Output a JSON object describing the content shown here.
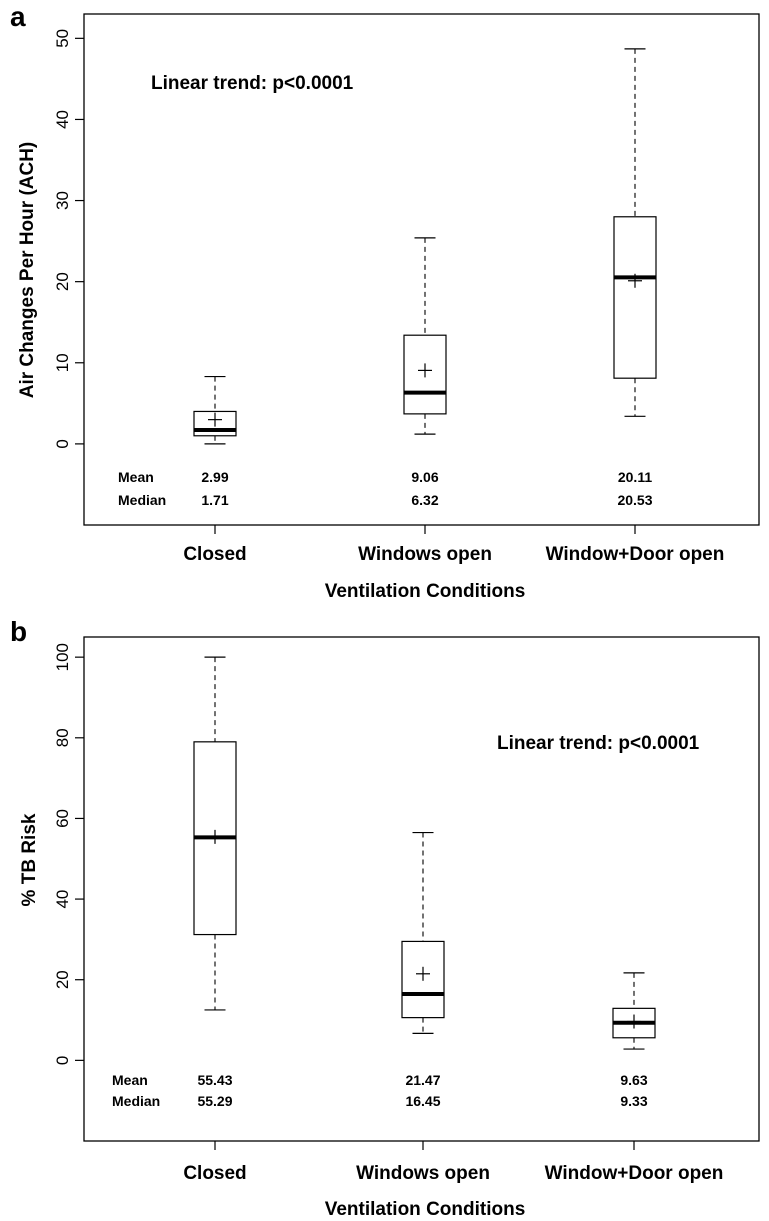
{
  "chart_data": [
    {
      "type": "box",
      "panel": "a",
      "annotation": "Linear trend: p<0.0001",
      "xlabel": "Ventilation Conditions",
      "ylabel": "Air Changes Per Hour (ACH)",
      "ylim": [
        -10,
        53
      ],
      "yticks": [
        "0",
        "10",
        "20",
        "30",
        "40",
        "50"
      ],
      "categories": [
        "Closed",
        "Windows open",
        "Window+Door open"
      ],
      "boxes": [
        {
          "min": 0,
          "q1": 1.0,
          "median": 1.71,
          "q3": 4.0,
          "max": 8.3,
          "mean": 2.99
        },
        {
          "min": 1.2,
          "q1": 3.7,
          "median": 6.32,
          "q3": 13.4,
          "max": 25.4,
          "mean": 9.06
        },
        {
          "min": 3.4,
          "q1": 8.1,
          "median": 20.53,
          "q3": 28.0,
          "max": 48.7,
          "mean": 20.11
        }
      ],
      "stats_labels": {
        "mean": "Mean",
        "median": "Median"
      },
      "mean_text": [
        "2.99",
        "9.06",
        "20.11"
      ],
      "median_text": [
        "1.71",
        "6.32",
        "20.53"
      ]
    },
    {
      "type": "box",
      "panel": "b",
      "annotation": "Linear trend: p<0.0001",
      "xlabel": "Ventilation Conditions",
      "ylabel": "% TB Risk",
      "ylim": [
        -20,
        105
      ],
      "yticks": [
        "0",
        "20",
        "40",
        "60",
        "80",
        "100"
      ],
      "categories": [
        "Closed",
        "Windows open",
        "Window+Door open"
      ],
      "boxes": [
        {
          "min": 12.5,
          "q1": 31.2,
          "median": 55.29,
          "q3": 79.0,
          "max": 100,
          "mean": 55.43
        },
        {
          "min": 6.7,
          "q1": 10.6,
          "median": 16.45,
          "q3": 29.5,
          "max": 56.5,
          "mean": 21.47
        },
        {
          "min": 2.8,
          "q1": 5.6,
          "median": 9.33,
          "q3": 12.9,
          "max": 21.7,
          "mean": 9.63
        }
      ],
      "stats_labels": {
        "mean": "Mean",
        "median": "Median"
      },
      "mean_text": [
        "55.43",
        "21.47",
        "9.63"
      ],
      "median_text": [
        "55.29",
        "16.45",
        "9.33"
      ]
    }
  ]
}
